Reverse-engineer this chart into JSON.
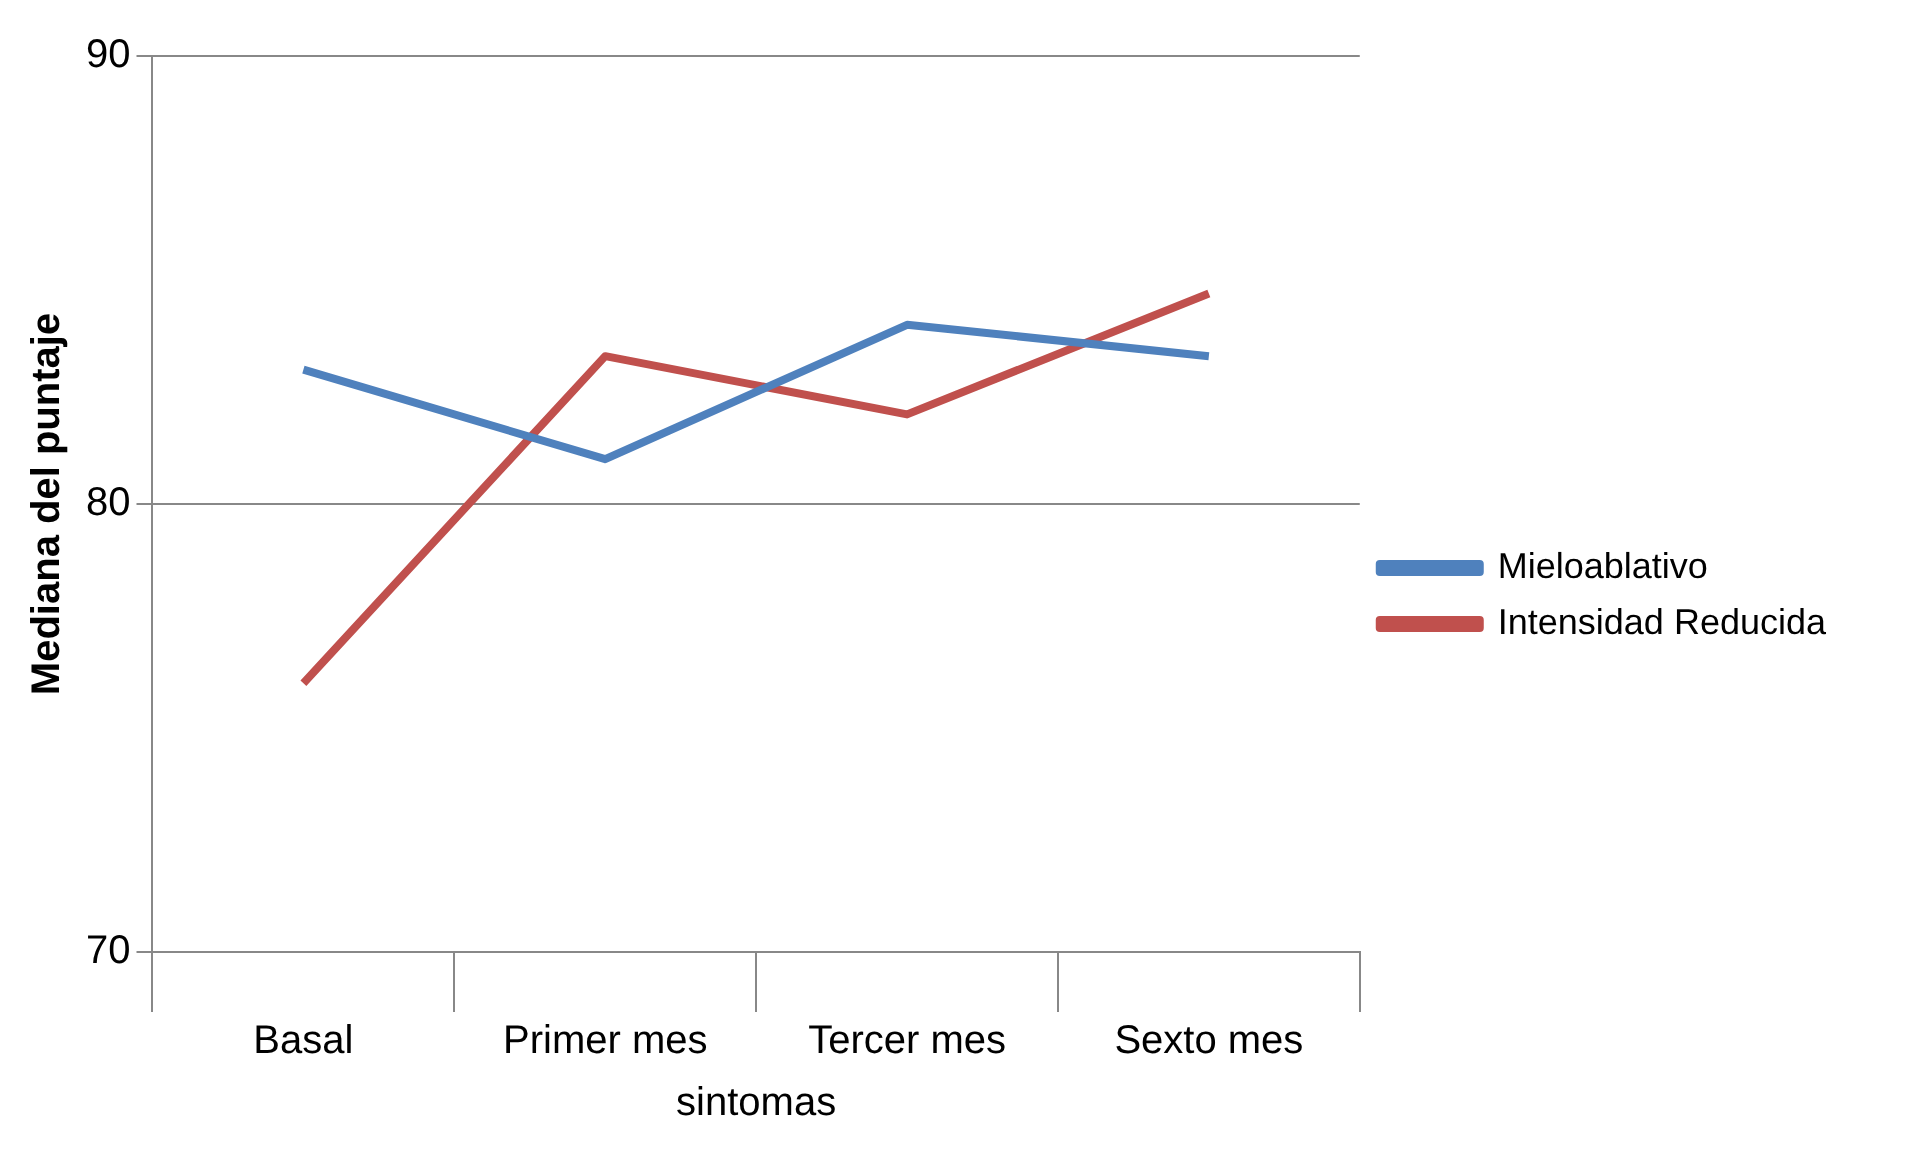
{
  "chart_data": {
    "type": "line",
    "xlabel": "sintomas",
    "ylabel": "Mediana del puntaje",
    "categories": [
      "Basal",
      "Primer mes",
      "Tercer mes",
      "Sexto mes"
    ],
    "series": [
      {
        "name": "Mieloablativo",
        "color": "#4f81bd",
        "values": [
          83,
          81,
          84,
          83.3
        ]
      },
      {
        "name": "Intensidad Reducida",
        "color": "#c0504d",
        "values": [
          76,
          83.3,
          82,
          84.7
        ]
      }
    ],
    "ylim": [
      70,
      90
    ],
    "yticks": [
      70,
      80,
      90
    ],
    "grid": "y",
    "legend": "right",
    "marker": "none",
    "line_style": "solid"
  }
}
